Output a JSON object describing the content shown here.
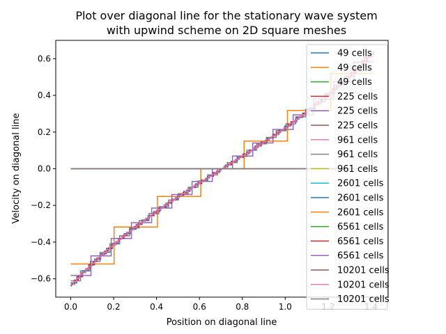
{
  "chart_data": {
    "type": "line",
    "title": "Plot over diagonal line for the stationary wave system\nwith upwind scheme on 2D square meshes",
    "xlabel": "Position on diagonal line",
    "ylabel": "Velocity on diagonal line",
    "xlim": [
      -0.07,
      1.48
    ],
    "ylim": [
      -0.7,
      0.7
    ],
    "xticks": [
      0.0,
      0.2,
      0.4,
      0.6,
      0.8,
      1.0,
      1.2,
      1.4
    ],
    "xtick_labels": [
      "0.0",
      "0.2",
      "0.4",
      "0.6",
      "0.8",
      "1.0",
      "1.2",
      "1.4"
    ],
    "yticks": [
      -0.6,
      -0.4,
      -0.2,
      0.0,
      0.2,
      0.4,
      0.6
    ],
    "ytick_labels": [
      "−0.6",
      "−0.4",
      "−0.2",
      "0.0",
      "0.2",
      "0.4",
      "0.6"
    ],
    "grid": false,
    "legend_position": "right-inside",
    "series": [
      {
        "name": "49 cells",
        "color": "#1f77b4",
        "kind": "smooth",
        "n": 7
      },
      {
        "name": "49 cells",
        "color": "#ff7f0e",
        "kind": "step",
        "n": 7
      },
      {
        "name": "49 cells",
        "color": "#2ca02c",
        "kind": "zero"
      },
      {
        "name": "225 cells",
        "color": "#d62728",
        "kind": "smooth",
        "n": 15
      },
      {
        "name": "225 cells",
        "color": "#9467bd",
        "kind": "step",
        "n": 15
      },
      {
        "name": "225 cells",
        "color": "#8c564b",
        "kind": "zero"
      },
      {
        "name": "961 cells",
        "color": "#e377c2",
        "kind": "smooth",
        "n": 31
      },
      {
        "name": "961 cells",
        "color": "#7f7f7f",
        "kind": "step",
        "n": 31
      },
      {
        "name": "961 cells",
        "color": "#bcbd22",
        "kind": "zero"
      },
      {
        "name": "2601 cells",
        "color": "#17becf",
        "kind": "smooth",
        "n": 51
      },
      {
        "name": "2601 cells",
        "color": "#1f77b4",
        "kind": "step",
        "n": 51
      },
      {
        "name": "2601 cells",
        "color": "#ff7f0e",
        "kind": "zero"
      },
      {
        "name": "6561 cells",
        "color": "#2ca02c",
        "kind": "smooth",
        "n": 81
      },
      {
        "name": "6561 cells",
        "color": "#d62728",
        "kind": "step",
        "n": 81
      },
      {
        "name": "6561 cells",
        "color": "#9467bd",
        "kind": "zero"
      },
      {
        "name": "10201 cells",
        "color": "#8c564b",
        "kind": "smooth",
        "n": 101
      },
      {
        "name": "10201 cells",
        "color": "#e377c2",
        "kind": "step",
        "n": 101
      },
      {
        "name": "10201 cells",
        "color": "#7f7f7f",
        "kind": "zero"
      }
    ]
  }
}
